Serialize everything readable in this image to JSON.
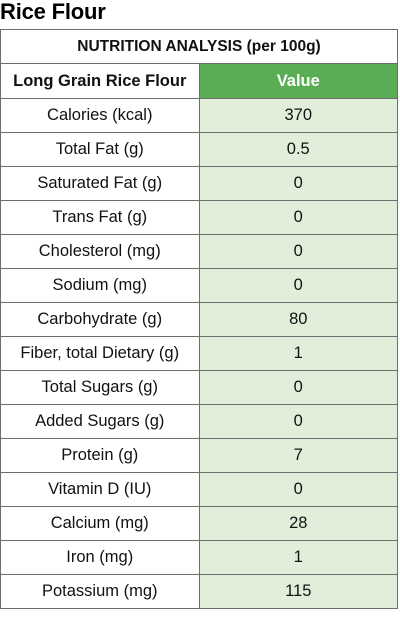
{
  "title": "Rice Flour",
  "table": {
    "banner": "NUTRITION ANALYSIS (per 100g)",
    "column_headers": {
      "name": "Long Grain Rice Flour",
      "value": "Value"
    },
    "rows": [
      {
        "name": "Calories (kcal)",
        "value": "370"
      },
      {
        "name": "Total Fat (g)",
        "value": "0.5"
      },
      {
        "name": "Saturated Fat (g)",
        "value": "0"
      },
      {
        "name": "Trans Fat (g)",
        "value": "0"
      },
      {
        "name": "Cholesterol (mg)",
        "value": "0"
      },
      {
        "name": "Sodium (mg)",
        "value": "0"
      },
      {
        "name": "Carbohydrate (g)",
        "value": "80"
      },
      {
        "name": "Fiber, total Dietary (g)",
        "value": "1"
      },
      {
        "name": "Total Sugars (g)",
        "value": "0"
      },
      {
        "name": "Added Sugars (g)",
        "value": "0"
      },
      {
        "name": "Protein (g)",
        "value": "7"
      },
      {
        "name": "Vitamin D (IU)",
        "value": "0"
      },
      {
        "name": "Calcium (mg)",
        "value": "28"
      },
      {
        "name": "Iron (mg)",
        "value": "1"
      },
      {
        "name": "Potassium (mg)",
        "value": "115"
      }
    ]
  },
  "colors": {
    "header_green": "#5aad55",
    "value_column_green": "#e1efda",
    "border_gray": "#6d6d6d"
  }
}
